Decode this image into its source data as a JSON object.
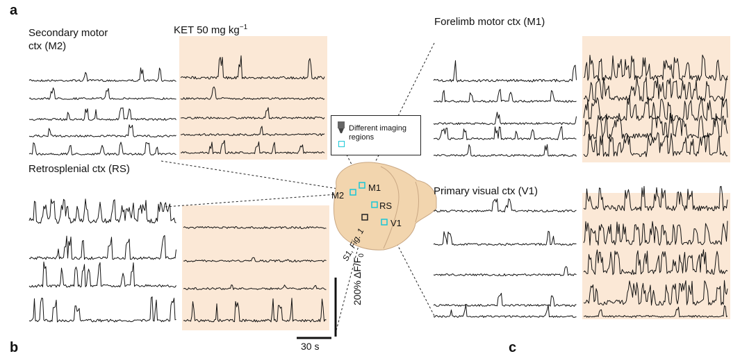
{
  "panels": {
    "a": "a",
    "b": "b",
    "c": "c"
  },
  "labels": {
    "m2_region": "Secondary motor\nctx (M2)",
    "ket_condition": "KET 50 mg kg",
    "ket_exponent": "−1",
    "rs_region": "Retrosplenial ctx (RS)",
    "m1_region": "Forelimb motor ctx (M1)",
    "v1_region": "Primary visual ctx (V1)"
  },
  "legend": {
    "text": "Different imaging\nregions"
  },
  "brain": {
    "m1": "M1",
    "m2": "M2",
    "rs": "RS",
    "v1": "V1",
    "ref": "S1, Fig. 1"
  },
  "scale": {
    "time": "30 s",
    "amplitude": "200% ΔF/F",
    "amplitude_sub": "0"
  },
  "colors": {
    "ket_bg": "#fbe8d6",
    "brain": "#f2d5ae",
    "brain_edge": "#c9a783",
    "roi": "#19c7d7",
    "trace": "#111111"
  }
}
